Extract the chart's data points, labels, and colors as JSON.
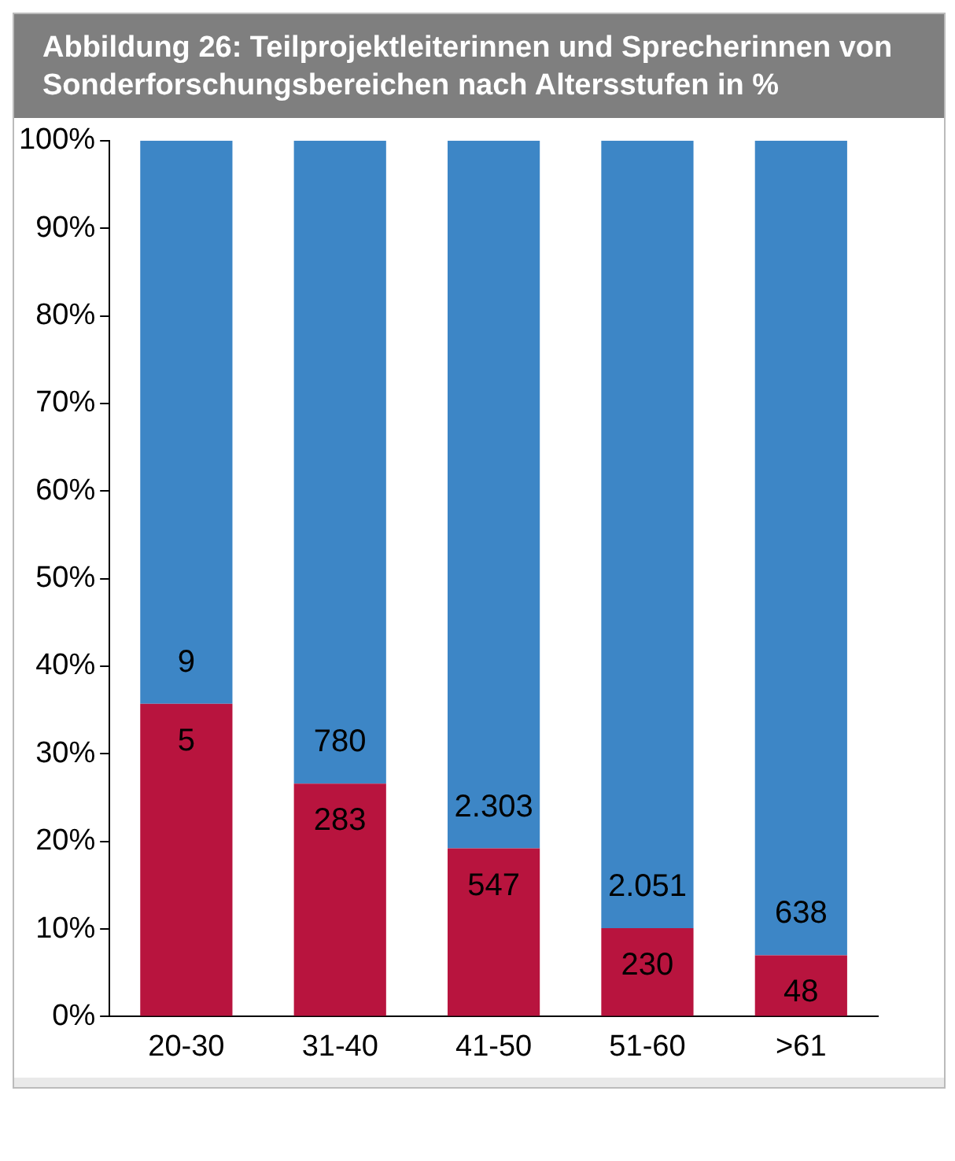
{
  "chart_data": {
    "type": "bar",
    "title": "Abbildung 26: Teilprojektleiterinnen und Sprecherinnen von Sonderforschungsbereichen nach Altersstufen in %",
    "categories": [
      "20-30",
      "31-40",
      "41-50",
      "51-60",
      ">61"
    ],
    "stacked": true,
    "series": [
      {
        "color": "#b8143e",
        "values": [
          35.7,
          26.6,
          19.2,
          10.1,
          7.0
        ]
      },
      {
        "color": "#3d86c6",
        "values": [
          64.3,
          73.4,
          80.8,
          89.9,
          93.0
        ]
      }
    ],
    "annotations": [
      {
        "text": "9",
        "x": "20-30",
        "y": 35.7
      },
      {
        "text": "5",
        "x": "20-30",
        "y": 35.7
      },
      {
        "text": "780",
        "x": "31-40",
        "y": 26.6
      },
      {
        "text": "283",
        "x": "31-40",
        "y": 26.6
      },
      {
        "text": "2.303",
        "x": "41-50",
        "y": 19.2
      },
      {
        "text": "547",
        "x": "41-50",
        "y": 19.2
      },
      {
        "text": "2.051",
        "x": "51-60",
        "y": 10.1
      },
      {
        "text": "230",
        "x": "51-60",
        "y": 10.1
      },
      {
        "text": "638",
        "x": ">61",
        "y": 7.0
      },
      {
        "text": "48",
        "x": ">61",
        "y": 7.0
      }
    ],
    "ylim": [
      0,
      100
    ],
    "yticks": [
      {
        "value": 0,
        "label": "0%"
      },
      {
        "value": 10,
        "label": "10%"
      },
      {
        "value": 20,
        "label": "20%"
      },
      {
        "value": 30,
        "label": "30%"
      },
      {
        "value": 40,
        "label": "40%"
      },
      {
        "value": 50,
        "label": "50%"
      },
      {
        "value": 60,
        "label": "60%"
      },
      {
        "value": 70,
        "label": "70%"
      },
      {
        "value": 80,
        "label": "80%"
      },
      {
        "value": 90,
        "label": "90%"
      },
      {
        "value": 100,
        "label": "100%"
      }
    ],
    "grid": false,
    "legend": false
  }
}
